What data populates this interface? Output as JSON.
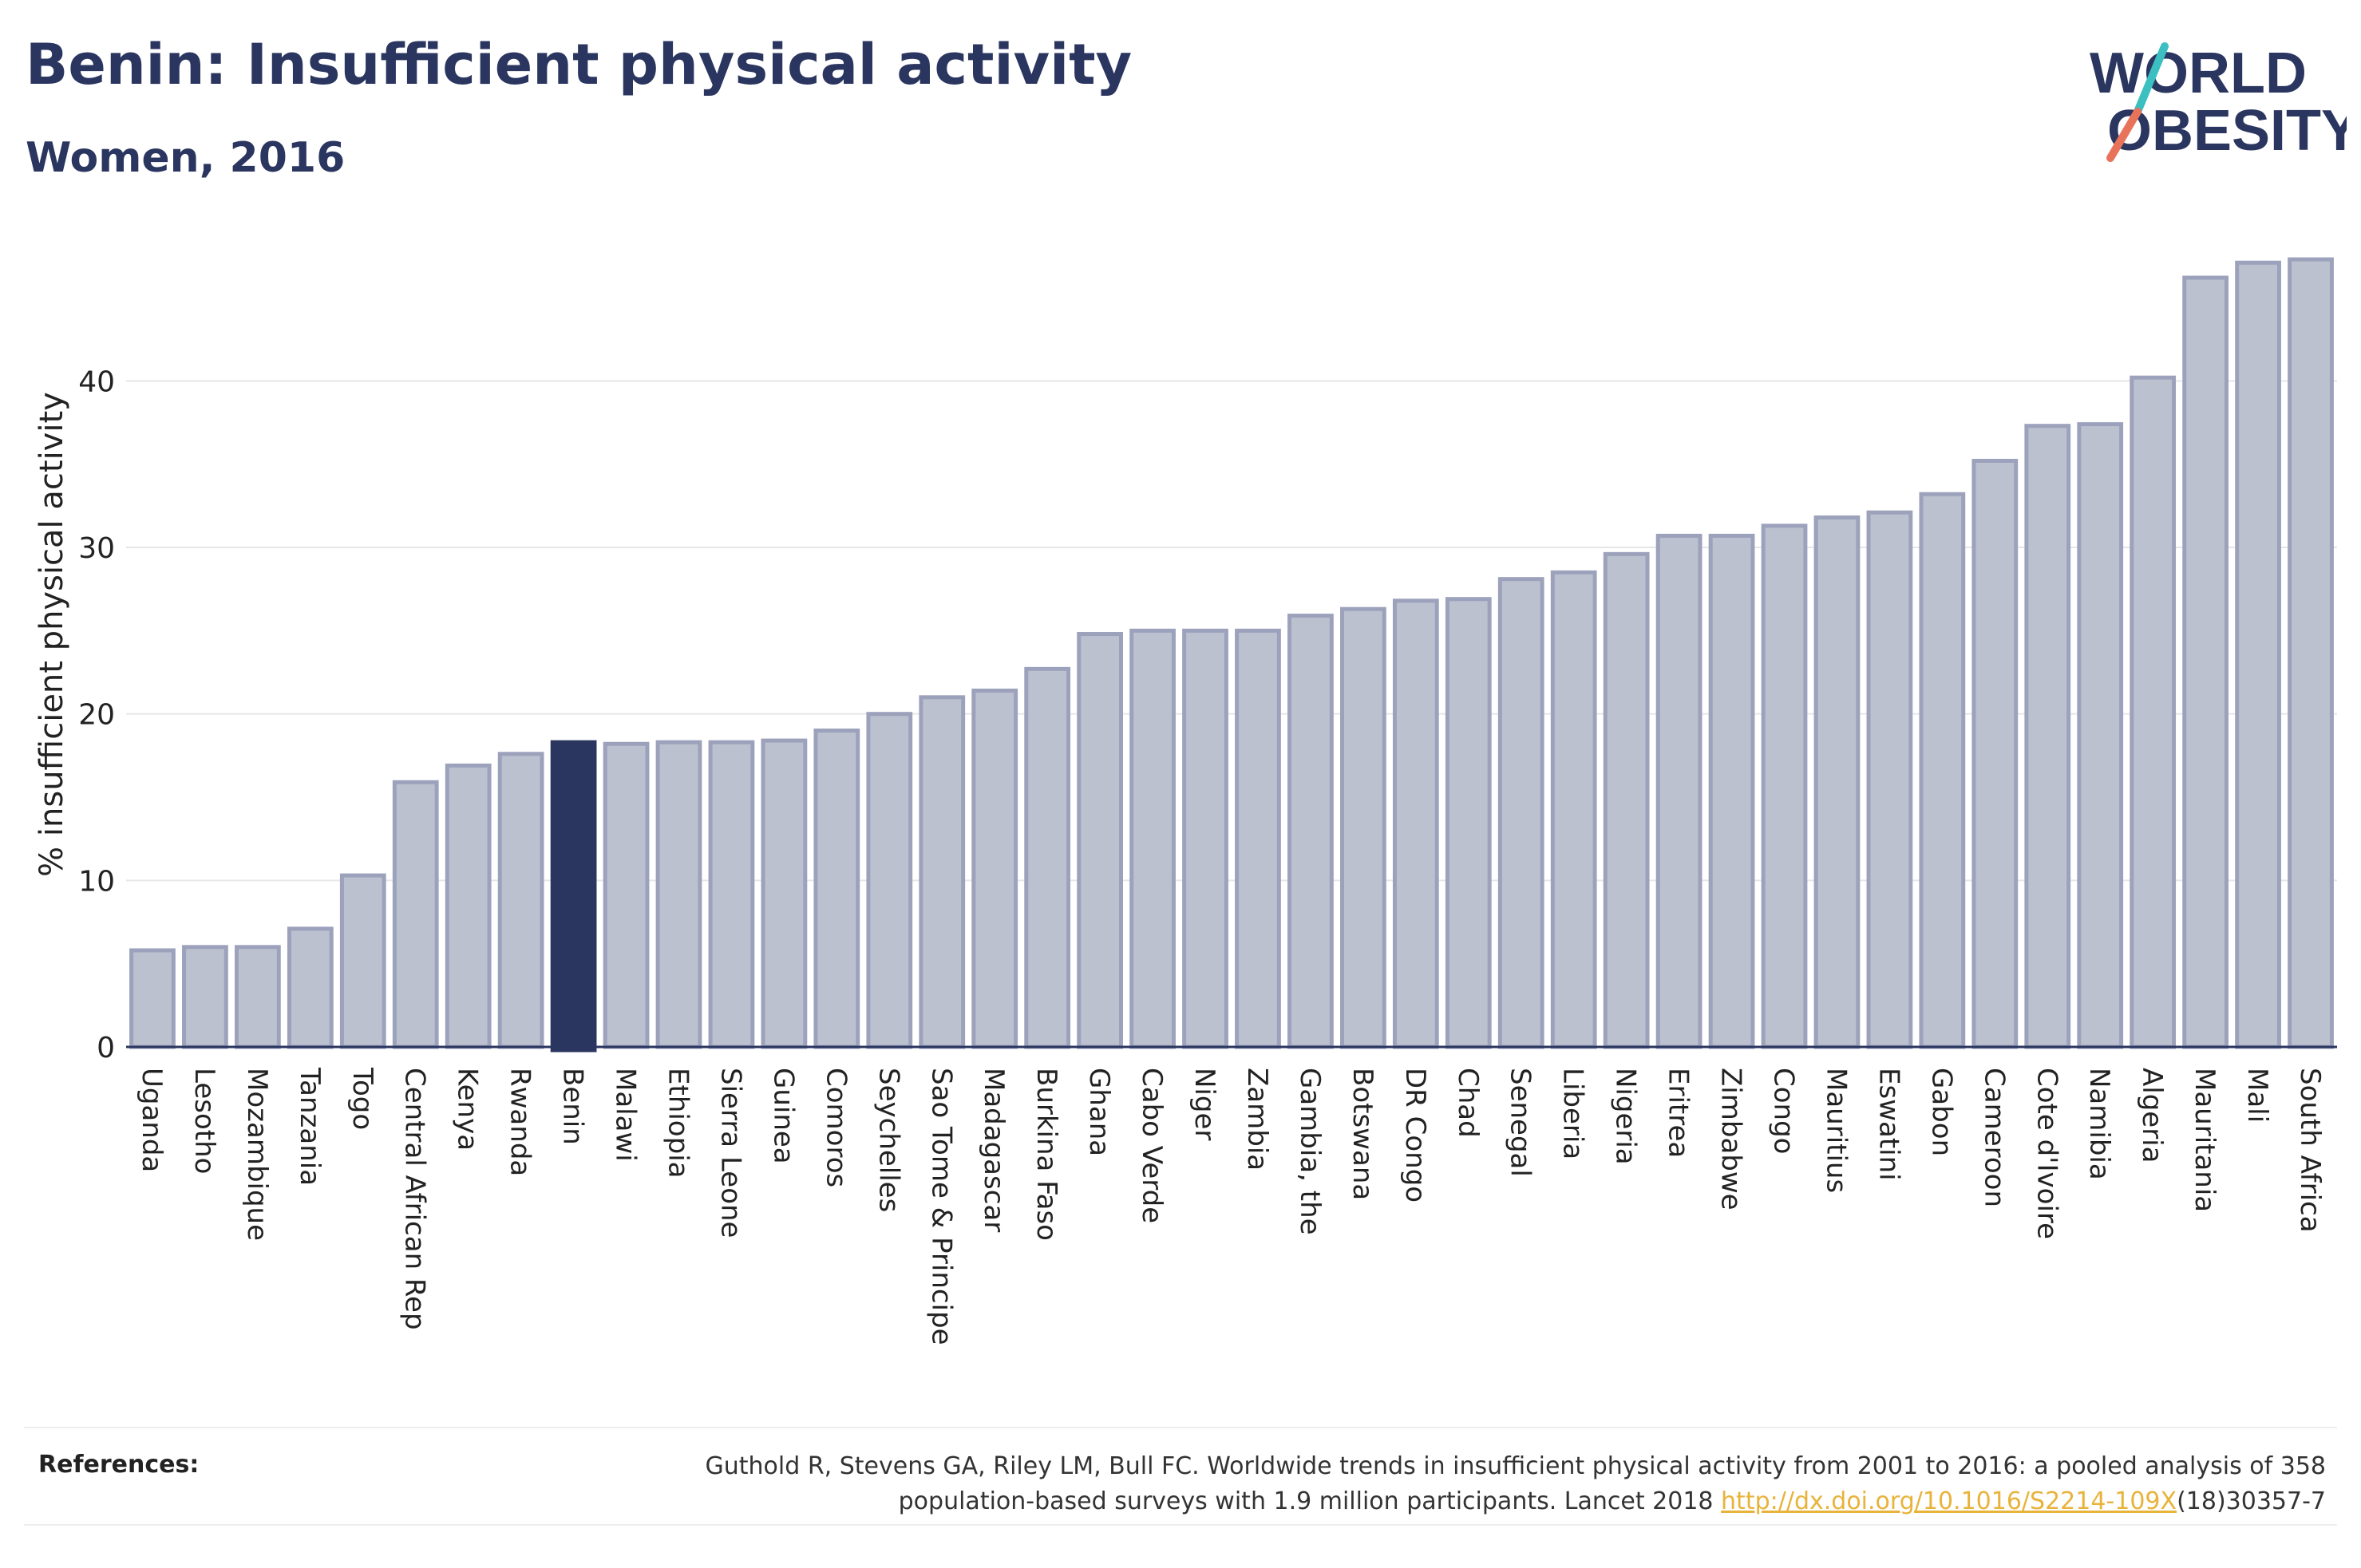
{
  "header": {
    "title": "Benin: Insufficient physical activity",
    "subtitle": "Women, 2016"
  },
  "logo": {
    "line1": "WORLD",
    "line2": "OBESITY",
    "accent_teal": "#3bbfc1",
    "accent_coral": "#e8735a"
  },
  "chart_data": {
    "type": "bar",
    "ylabel": "% insufficient physical activity",
    "xlabel": "",
    "ylim": [
      0,
      48.5
    ],
    "yticks": [
      0,
      10,
      20,
      30,
      40
    ],
    "grid": true,
    "highlight_category": "Benin",
    "colors": {
      "bar_fill": "#bcc1d0",
      "bar_stroke": "#9ca2bb",
      "highlight_fill": "#2b3660",
      "grid": "#e6e6e6",
      "axis": "#2b3660"
    },
    "categories": [
      "Uganda",
      "Lesotho",
      "Mozambique",
      "Tanzania",
      "Togo",
      "Central African Rep",
      "Kenya",
      "Rwanda",
      "Benin",
      "Malawi",
      "Ethiopia",
      "Sierra Leone",
      "Guinea",
      "Comoros",
      "Seychelles",
      "Sao Tome & Principe",
      "Madagascar",
      "Burkina Faso",
      "Ghana",
      "Cabo Verde",
      "Niger",
      "Zambia",
      "Gambia, the",
      "Botswana",
      "DR Congo",
      "Chad",
      "Senegal",
      "Liberia",
      "Nigeria",
      "Eritrea",
      "Zimbabwe",
      "Congo",
      "Mauritius",
      "Eswatini",
      "Gabon",
      "Cameroon",
      "Cote d'Ivoire",
      "Namibia",
      "Algeria",
      "Mauritania",
      "Mali",
      "South Africa"
    ],
    "values": [
      5.8,
      6.0,
      6.0,
      7.1,
      10.3,
      15.9,
      16.9,
      17.6,
      18.3,
      18.2,
      18.3,
      18.3,
      18.4,
      19.0,
      20.0,
      21.0,
      21.4,
      22.7,
      24.8,
      25.0,
      25.0,
      25.0,
      25.9,
      26.3,
      26.8,
      26.9,
      28.1,
      28.5,
      29.6,
      30.7,
      30.7,
      31.3,
      31.8,
      32.1,
      33.2,
      35.2,
      37.3,
      37.4,
      40.2,
      46.2,
      47.1,
      47.3
    ]
  },
  "references": {
    "label": "References:",
    "line1": "Guthold R, Stevens GA, Riley LM, Bull FC. Worldwide trends in insufficient physical activity from 2001 to 2016: a pooled analysis of 358",
    "line2_prefix": "population-based surveys with 1.9 million participants. Lancet 2018 ",
    "link_text": "http://dx.doi.org/10.1016/S2214-109X",
    "line2_suffix": "(18)30357-7"
  }
}
